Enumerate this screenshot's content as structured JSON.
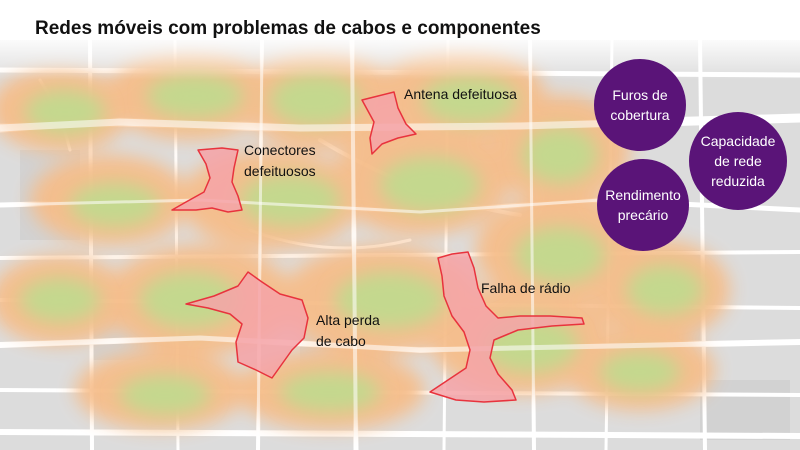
{
  "title": "Redes móveis com problemas de cabos e componentes",
  "colors": {
    "problem_fill": "#f5a3a8",
    "problem_stroke": "#e8333d",
    "heat_orange": "#f6bd8a",
    "heat_green": "#c4d88e",
    "road": "#ffffff",
    "map_base": "#dcdcdc",
    "circle_fill": "#5a1478",
    "circle_text": "#ffffff"
  },
  "problem_areas": [
    {
      "name": "antena",
      "lines": [
        "Antena defeituosa"
      ]
    },
    {
      "name": "conectores",
      "lines": [
        "Conectores",
        "defeituosos"
      ]
    },
    {
      "name": "cabo",
      "lines": [
        "Alta perda",
        "de cabo"
      ]
    },
    {
      "name": "radio",
      "lines": [
        "Falha de rádio"
      ]
    }
  ],
  "impact_circles": [
    {
      "name": "furos",
      "lines": [
        "Furos de",
        "cobertura"
      ]
    },
    {
      "name": "capacidade",
      "lines": [
        "Capacidade",
        "de rede",
        "reduzida"
      ]
    },
    {
      "name": "rendimento",
      "lines": [
        "Rendimento",
        "precário"
      ]
    }
  ]
}
